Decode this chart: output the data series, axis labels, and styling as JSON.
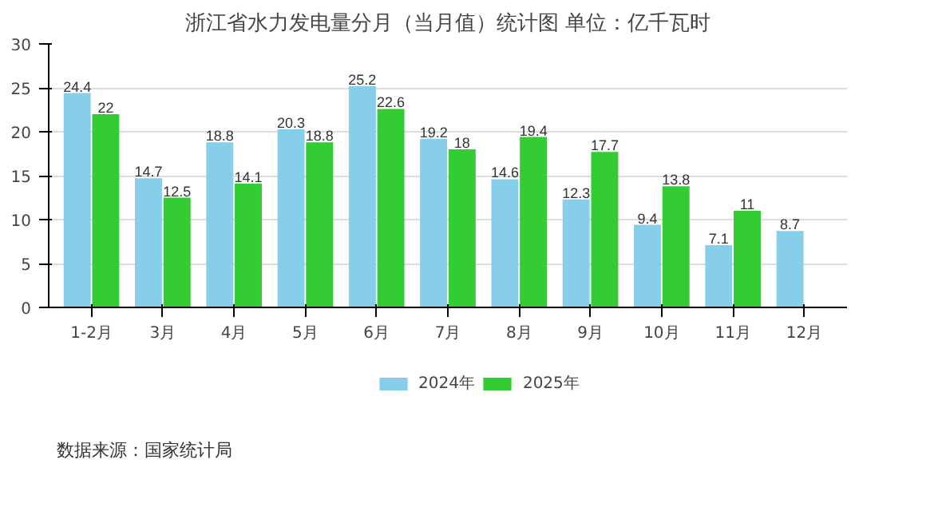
{
  "chart_data": {
    "type": "bar",
    "title": "浙江省水力发电量分月（当月值）统计图 单位：亿千瓦时",
    "categories": [
      "1-2月",
      "3月",
      "4月",
      "5月",
      "6月",
      "7月",
      "8月",
      "9月",
      "10月",
      "11月",
      "12月"
    ],
    "series": [
      {
        "name": "2024年",
        "color": "#87ceeb",
        "values": [
          24.4,
          14.7,
          18.8,
          20.3,
          25.2,
          19.2,
          14.6,
          12.3,
          9.4,
          7.1,
          8.7
        ]
      },
      {
        "name": "2025年",
        "color": "#33cc33",
        "values": [
          22,
          12.5,
          14.1,
          18.8,
          22.6,
          18,
          19.4,
          17.7,
          13.8,
          11,
          null
        ]
      }
    ],
    "ylim": [
      0,
      30
    ],
    "yticks": [
      0,
      5,
      10,
      15,
      20,
      25,
      30
    ],
    "grid": "y",
    "legend": "bottom",
    "data_labels": true,
    "annotations": [
      "数据来源：国家统计局"
    ]
  }
}
